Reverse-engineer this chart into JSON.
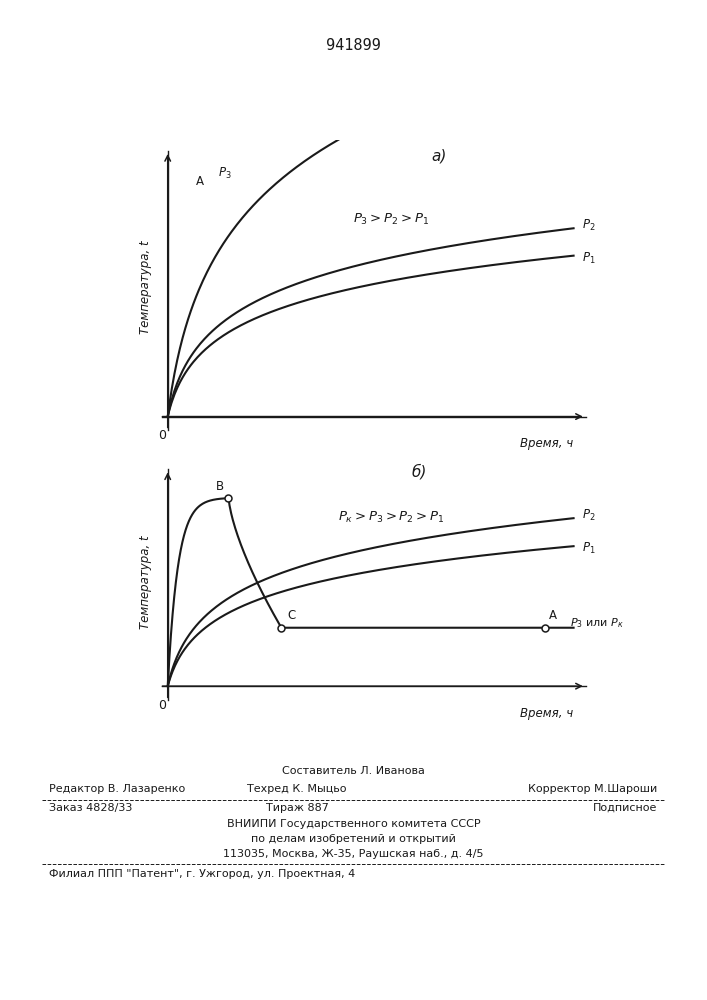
{
  "title": "941899",
  "fig_bg": "#ffffff",
  "plot_bg": "#ffffff",
  "line_color": "#1a1a1a",
  "chart_a_label": "а)",
  "chart_b_label": "б)",
  "xlabel": "Время, ч",
  "ylabel_a": "Температура, t",
  "ylabel_b": "Температура, t",
  "chart_a_annotation": "$P_3>P_2>P_1$",
  "chart_b_annotation": "$P_к>P_3>P_2>P_1$",
  "footer_line0": "Составитель Л. Иванова",
  "footer_line1_left": "Редактор В. Лазаренко",
  "footer_line1_mid": "Техред К. Мыцьо",
  "footer_line1_right": "Корректор М.Шароши",
  "footer_line2_left": "Заказ 4828/33",
  "footer_line2_mid": "Тираж 887",
  "footer_line2_right": "Подписное",
  "footer_line3": "ВНИИПИ Государственного комитета СССР",
  "footer_line4": "по делам изобретений и открытий",
  "footer_line5": "113035, Москва, Ж-35, Раушская наб., д. 4/5",
  "footer_line6": "Филиал ППП \"Патент\", г. Ужгород, ул. Проектная, 4"
}
